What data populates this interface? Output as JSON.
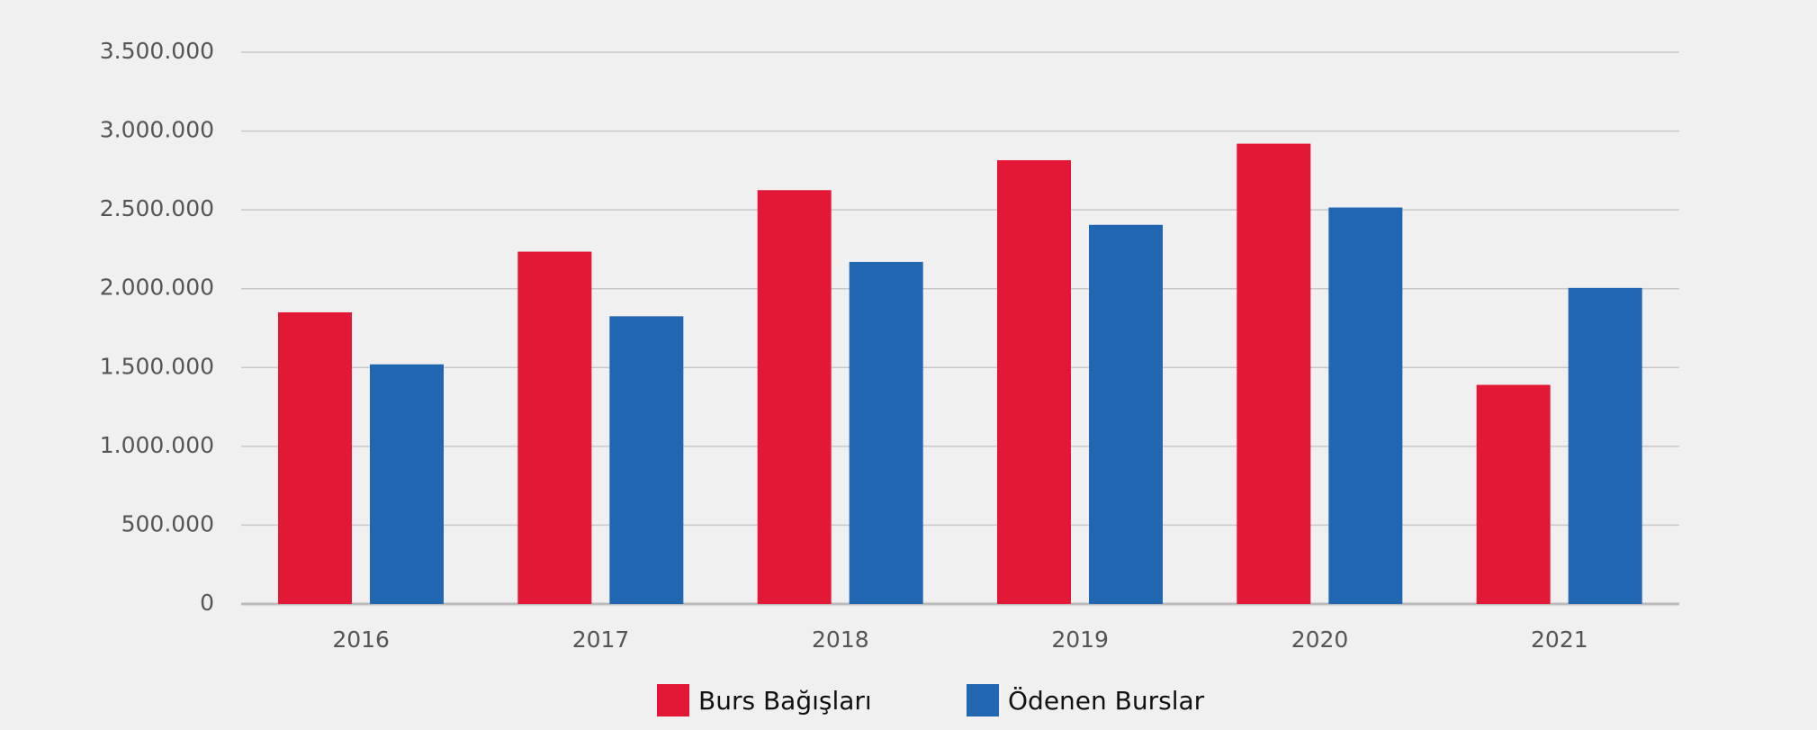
{
  "chart_data": {
    "type": "bar",
    "categories": [
      "2016",
      "2017",
      "2018",
      "2019",
      "2020",
      "2021"
    ],
    "series": [
      {
        "name": "Burs Bağışları",
        "color": "#e31837",
        "values": [
          1850000,
          2235000,
          2625000,
          2815000,
          2920000,
          1390000
        ]
      },
      {
        "name": "Ödenen Burslar",
        "color": "#2166b0",
        "values": [
          1520000,
          1825000,
          2170000,
          2405000,
          2515000,
          2005000
        ]
      }
    ],
    "ylim": [
      0,
      3500000
    ],
    "yticks": [
      0,
      {
        "value": 500000,
        "label": "500.000"
      },
      {
        "value": 1000000,
        "label": "1.000.000"
      },
      {
        "value": 1500000,
        "label": "1.500.000"
      },
      {
        "value": 2000000,
        "label": "2.000.000"
      },
      {
        "value": 2500000,
        "label": "2.500.000"
      },
      {
        "value": 3000000,
        "label": "3.000.000"
      },
      {
        "value": 3500000,
        "label": "3.500.000"
      }
    ],
    "grid": true,
    "legend": "bottom"
  }
}
